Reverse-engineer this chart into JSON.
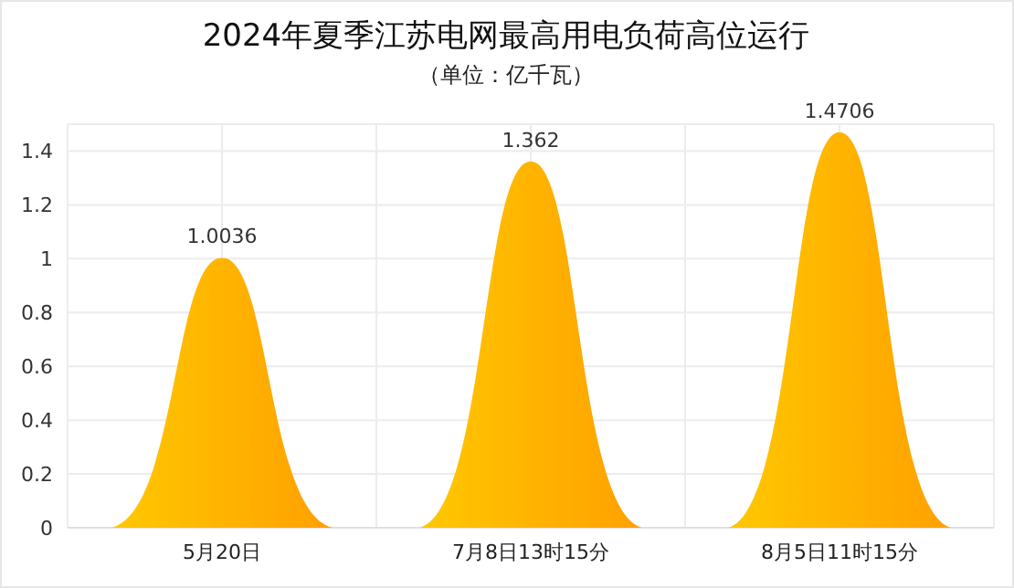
{
  "chart_data": {
    "type": "bar",
    "title": "2024年夏季江苏电网最高用电负荷高位运行",
    "subtitle": "（单位：亿千瓦）",
    "categories": [
      "5月20日",
      "7月8日13时15分",
      "8月5日11时15分"
    ],
    "values": [
      1.0036,
      1.362,
      1.4706
    ],
    "color": "#ffa000",
    "data_labels": true,
    "ylim": [
      0,
      1.5
    ],
    "yticks": [
      0,
      0.2,
      0.4,
      0.6,
      0.8,
      1,
      1.2,
      1.4
    ],
    "grid": true
  }
}
